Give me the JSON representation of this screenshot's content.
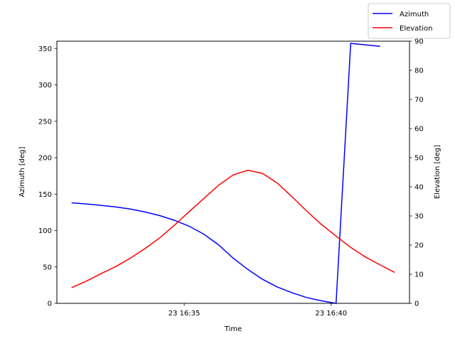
{
  "chart_data": {
    "type": "line",
    "title": "",
    "xlabel": "Time",
    "ylabel_left": "Azimuth [deg]",
    "ylabel_right": "Elevation [deg]",
    "x": [
      "16:31:10",
      "16:31:40",
      "16:32:10",
      "16:32:40",
      "16:33:10",
      "16:33:40",
      "16:34:10",
      "16:34:40",
      "16:35:10",
      "16:35:40",
      "16:36:10",
      "16:36:40",
      "16:37:10",
      "16:37:40",
      "16:38:10",
      "16:38:40",
      "16:39:10",
      "16:39:40",
      "16:40:10",
      "16:40:40",
      "16:41:10",
      "16:41:40",
      "16:42:10"
    ],
    "x_ticks": [
      "23 16:35",
      "23 16:40"
    ],
    "xlim": [
      "16:30:40",
      "16:42:40"
    ],
    "ylim_left": [
      0,
      360
    ],
    "yticks_left": [
      0,
      50,
      100,
      150,
      200,
      250,
      300,
      350
    ],
    "ylim_right": [
      0,
      90
    ],
    "yticks_right": [
      0,
      10,
      20,
      30,
      40,
      50,
      60,
      70,
      80,
      90
    ],
    "series": [
      {
        "name": "Azimuth",
        "axis": "left",
        "color": "#0000ff",
        "values": [
          138,
          136.5,
          134.5,
          132.5,
          129.5,
          125.5,
          120.5,
          114,
          106,
          95,
          80.5,
          62,
          46.5,
          33,
          22.5,
          14.5,
          8,
          3.5,
          0,
          357,
          355,
          353,
          null
        ]
      },
      {
        "name": "Elevation",
        "axis": "right",
        "color": "#ff0000",
        "values": [
          5.4,
          7.6,
          10.2,
          12.6,
          15.5,
          18.8,
          22.5,
          26.8,
          31.5,
          36.0,
          40.5,
          44.1,
          45.7,
          44.6,
          41.3,
          36.6,
          31.7,
          27.1,
          23.1,
          19.2,
          15.9,
          13.2,
          10.6
        ]
      }
    ],
    "legend_position": "top-right",
    "grid": false
  }
}
